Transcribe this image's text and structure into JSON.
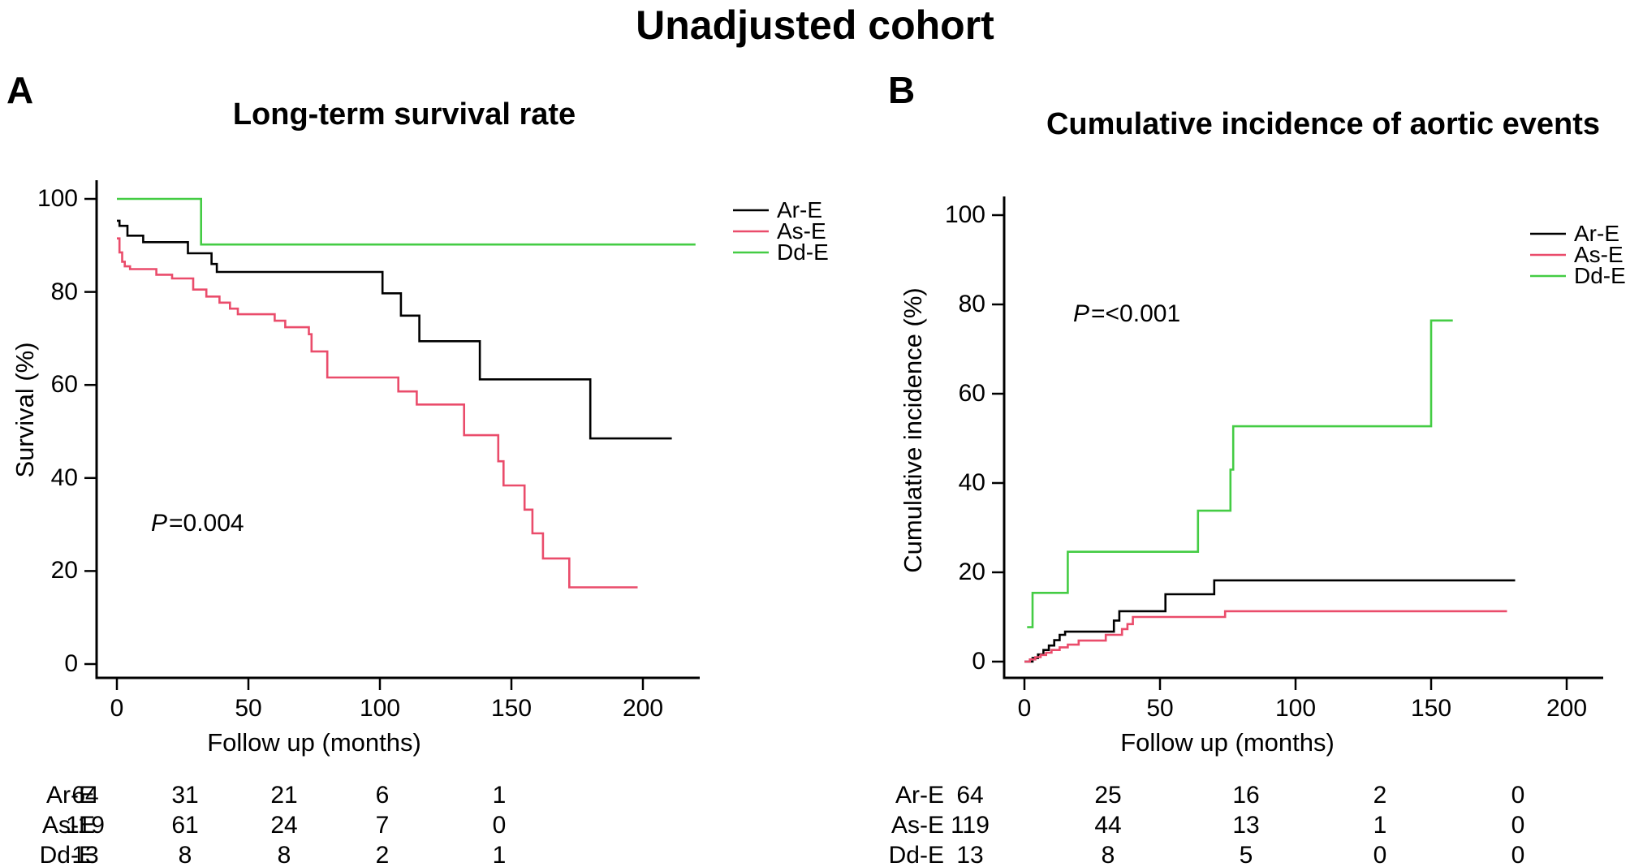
{
  "page_title": "Unadjusted cohort",
  "colors": {
    "ar_e": "#000000",
    "as_e": "#ea4c6b",
    "dd_e": "#44cc44"
  },
  "panels": [
    {
      "label": "A",
      "title": "Long-term survival rate",
      "ylabel": "Survival (%)",
      "xlabel": "Follow up (months)",
      "p_label": "P",
      "p_rest": "=0.004",
      "legend": [
        "Ar-E",
        "As-E",
        "Dd-E"
      ],
      "risk_table": {
        "rows": [
          {
            "label": "Ar-E",
            "values": [
              "64",
              "31",
              "21",
              "6",
              "1"
            ]
          },
          {
            "label": "As-E",
            "values": [
              "119",
              "61",
              "24",
              "7",
              "0"
            ]
          },
          {
            "label": "Dd-E",
            "values": [
              "13",
              "8",
              "8",
              "2",
              "1"
            ]
          }
        ]
      }
    },
    {
      "label": "B",
      "title": "Cumulative incidence of aortic events",
      "ylabel": "Cumulative incidence (%)",
      "xlabel": "Follow up (months)",
      "p_label": "P",
      "p_rest": "=<0.001",
      "legend": [
        "Ar-E",
        "As-E",
        "Dd-E"
      ],
      "risk_table": {
        "rows": [
          {
            "label": "Ar-E",
            "values": [
              "64",
              "25",
              "16",
              "2",
              "0"
            ]
          },
          {
            "label": "As-E",
            "values": [
              "119",
              "44",
              "13",
              "1",
              "0"
            ]
          },
          {
            "label": "Dd-E",
            "values": [
              "13",
              "8",
              "5",
              "0",
              "0"
            ]
          }
        ]
      }
    }
  ],
  "chart_data": [
    {
      "panel": "A",
      "type": "line",
      "step": true,
      "title": "Long-term survival rate",
      "xlabel": "Follow up (months)",
      "ylabel": "Survival (%)",
      "xlim": [
        0,
        222
      ],
      "ylim": [
        0,
        100
      ],
      "xticks": [
        0,
        50,
        100,
        150,
        200
      ],
      "yticks": [
        0,
        20,
        40,
        60,
        80,
        100
      ],
      "annotation": "P=0.004",
      "legend_position": "right-top",
      "grid": false,
      "series": [
        {
          "name": "Ar-E",
          "color": "#000000",
          "end": 211,
          "points": [
            [
              0,
              95.3
            ],
            [
              1,
              94.2
            ],
            [
              4,
              92.1
            ],
            [
              10,
              90.7
            ],
            [
              27,
              88.3
            ],
            [
              36,
              86.0
            ],
            [
              38,
              84.3
            ],
            [
              101,
              79.7
            ],
            [
              108,
              74.9
            ],
            [
              115,
              69.4
            ],
            [
              138,
              61.2
            ],
            [
              180,
              48.5
            ]
          ]
        },
        {
          "name": "As-E",
          "color": "#ea4c6b",
          "end": 198,
          "points": [
            [
              0,
              91.5
            ],
            [
              1,
              88.5
            ],
            [
              2,
              86.5
            ],
            [
              3,
              85.5
            ],
            [
              5,
              84.9
            ],
            [
              15,
              83.7
            ],
            [
              21,
              82.9
            ],
            [
              29,
              80.5
            ],
            [
              34,
              79.0
            ],
            [
              39,
              77.7
            ],
            [
              43,
              76.4
            ],
            [
              46,
              75.2
            ],
            [
              60,
              73.8
            ],
            [
              64,
              72.4
            ],
            [
              73,
              70.9
            ],
            [
              74,
              67.2
            ],
            [
              80,
              61.6
            ],
            [
              107,
              58.6
            ],
            [
              114,
              55.8
            ],
            [
              132,
              49.2
            ],
            [
              145,
              43.6
            ],
            [
              147,
              38.4
            ],
            [
              155,
              33.2
            ],
            [
              158,
              28.1
            ],
            [
              162,
              22.7
            ],
            [
              172,
              16.5
            ]
          ]
        },
        {
          "name": "Dd-E",
          "color": "#44cc44",
          "end": 220,
          "points": [
            [
              0,
              100
            ],
            [
              32,
              90.2
            ]
          ]
        }
      ]
    },
    {
      "panel": "B",
      "type": "line",
      "step": true,
      "title": "Cumulative incidence of aortic events",
      "xlabel": "Follow up (months)",
      "ylabel": "Cumulative incidence (%)",
      "xlim": [
        0,
        214
      ],
      "ylim": [
        0,
        100
      ],
      "xticks": [
        0,
        50,
        100,
        150,
        200
      ],
      "yticks": [
        0,
        20,
        40,
        60,
        80,
        100
      ],
      "annotation": "P=<0.001",
      "legend_position": "right-top",
      "grid": false,
      "series": [
        {
          "name": "Ar-E",
          "color": "#000000",
          "end": 181,
          "points": [
            [
              0,
              0
            ],
            [
              3,
              0.8
            ],
            [
              5,
              1.6
            ],
            [
              7,
              2.6
            ],
            [
              9,
              3.6
            ],
            [
              11,
              4.8
            ],
            [
              13,
              6.0
            ],
            [
              15,
              6.7
            ],
            [
              33,
              9.2
            ],
            [
              35,
              11.3
            ],
            [
              52,
              15.1
            ],
            [
              70,
              18.2
            ]
          ]
        },
        {
          "name": "As-E",
          "color": "#ea4c6b",
          "end": 178,
          "points": [
            [
              0,
              0
            ],
            [
              2,
              0.5
            ],
            [
              4,
              1.0
            ],
            [
              6,
              1.5
            ],
            [
              8,
              2.0
            ],
            [
              10,
              2.6
            ],
            [
              13,
              3.2
            ],
            [
              16,
              3.8
            ],
            [
              20,
              4.7
            ],
            [
              30,
              6.0
            ],
            [
              36,
              7.3
            ],
            [
              38,
              8.4
            ],
            [
              40,
              10.0
            ],
            [
              74,
              11.3
            ]
          ]
        },
        {
          "name": "Dd-E",
          "color": "#44cc44",
          "end": 158,
          "points": [
            [
              1,
              7.7
            ],
            [
              3,
              15.4
            ],
            [
              16,
              24.6
            ],
            [
              64,
              33.8
            ],
            [
              76,
              43.0
            ],
            [
              77,
              52.7
            ],
            [
              150,
              76.4
            ]
          ]
        }
      ]
    }
  ]
}
